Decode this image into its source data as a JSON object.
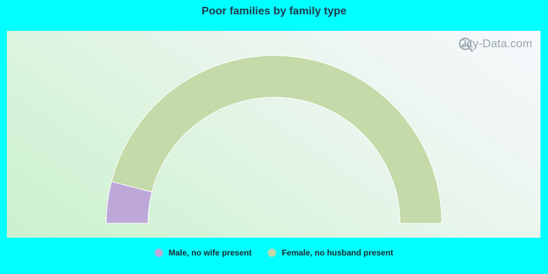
{
  "title": "Poor families by family type",
  "watermark": "City-Data.com",
  "chart_data": {
    "type": "pie",
    "subtype": "half-donut",
    "title": "Poor families by family type",
    "series": [
      {
        "name": "Male, no wife present",
        "value": 8,
        "color": "#bea8da"
      },
      {
        "name": "Female, no husband present",
        "value": 92,
        "color": "#c4daa8"
      }
    ],
    "legend_placement": "bottom-center"
  }
}
